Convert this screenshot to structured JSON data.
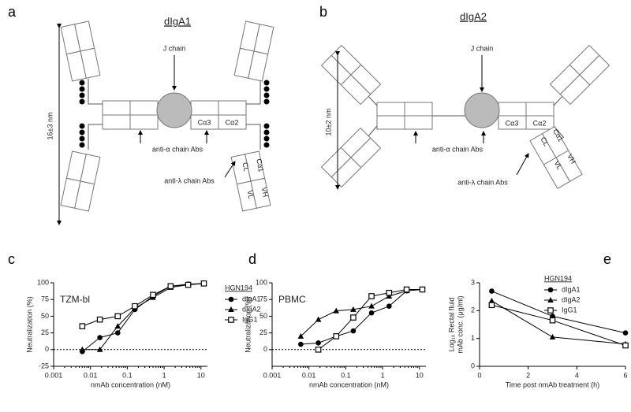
{
  "diagrams": [
    {
      "panel": "a",
      "title": "dIgA1",
      "j_chain": "J chain",
      "size": "16±3 nm",
      "anti_alpha": "anti-α chain Abs",
      "anti_lambda": "anti-λ chain Abs",
      "domains": [
        "Cα3",
        "Cα2",
        "CL",
        "VL",
        "Cα1",
        "VH"
      ]
    },
    {
      "panel": "b",
      "title": "dIgA2",
      "j_chain": "J chain",
      "size": "10±2 nm",
      "anti_alpha": "anti-α chain Abs",
      "anti_lambda": "anti-λ chain Abs",
      "domains": [
        "Cα3",
        "Cα2",
        "CL",
        "VL",
        "Cα1",
        "VH"
      ]
    }
  ],
  "chart_data": [
    {
      "type": "line",
      "panel": "c",
      "inset_label": "TZM-bl",
      "ylabel": "Neutralization (%)",
      "xlabel": "nmAb concentration (nM)",
      "xscale": "log",
      "xlim": [
        0.001,
        15
      ],
      "xticks": [
        0.001,
        0.01,
        0.1,
        1,
        10
      ],
      "ylim": [
        -25,
        100
      ],
      "yticks": [
        -25,
        0,
        25,
        50,
        75,
        100
      ],
      "reference_line": 0,
      "legend_title": "HGN194",
      "x": [
        0.006,
        0.018,
        0.055,
        0.16,
        0.5,
        1.5,
        4.5,
        12
      ],
      "series": [
        {
          "name": "dIgA1",
          "color": "#000000",
          "marker": "circle",
          "values": [
            -3,
            18,
            25,
            60,
            80,
            95,
            98,
            99
          ]
        },
        {
          "name": "dIgA2",
          "color": "#000000",
          "marker": "triangle",
          "values": [
            0,
            0,
            35,
            62,
            78,
            93,
            97,
            99
          ]
        },
        {
          "name": "IgG1",
          "color": "#000000",
          "marker": "square",
          "values": [
            35,
            45,
            50,
            65,
            82,
            95,
            97,
            99
          ]
        }
      ]
    },
    {
      "type": "line",
      "panel": "d",
      "inset_label": "PBMC",
      "ylabel": "Neutralization (%)",
      "xlabel": "nmAb concentration (nM)",
      "xscale": "log",
      "xlim": [
        0.001,
        15
      ],
      "xticks": [
        0.001,
        0.01,
        0.1,
        1,
        10
      ],
      "ylim": [
        -25,
        100
      ],
      "yticks": [
        0,
        25,
        50,
        75,
        100
      ],
      "reference_line": 0,
      "x": [
        0.006,
        0.018,
        0.055,
        0.16,
        0.5,
        1.5,
        4.5,
        12
      ],
      "series": [
        {
          "name": "dIgA1",
          "color": "#000000",
          "marker": "circle",
          "values": [
            8,
            10,
            20,
            28,
            55,
            65,
            88,
            null
          ]
        },
        {
          "name": "dIgA2",
          "color": "#000000",
          "marker": "triangle",
          "values": [
            20,
            45,
            58,
            60,
            65,
            80,
            88,
            90
          ]
        },
        {
          "name": "IgG1",
          "color": "#000000",
          "marker": "square",
          "values": [
            null,
            0,
            20,
            48,
            80,
            85,
            90,
            90
          ]
        }
      ]
    },
    {
      "type": "line",
      "panel": "e",
      "ylabel": [
        "Log₁₀ Rectal fluid",
        "mAb conc. (μg/ml)"
      ],
      "xlabel": "Time post nmAb treatment (h)",
      "xscale": "linear",
      "xlim": [
        0,
        6
      ],
      "xticks": [
        0,
        2,
        4,
        6
      ],
      "ylim": [
        0,
        3
      ],
      "yticks": [
        0,
        1,
        2,
        3
      ],
      "legend_title": "HGN194",
      "x": [
        0.5,
        3,
        6
      ],
      "series": [
        {
          "name": "dIgA1",
          "color": "#000000",
          "marker": "circle",
          "values": [
            2.7,
            1.8,
            1.2
          ]
        },
        {
          "name": "dIgA2",
          "color": "#000000",
          "marker": "triangle",
          "values": [
            2.35,
            1.05,
            0.8
          ]
        },
        {
          "name": "IgG1",
          "color": "#000000",
          "marker": "square",
          "values": [
            2.2,
            1.65,
            0.75
          ]
        }
      ]
    }
  ]
}
